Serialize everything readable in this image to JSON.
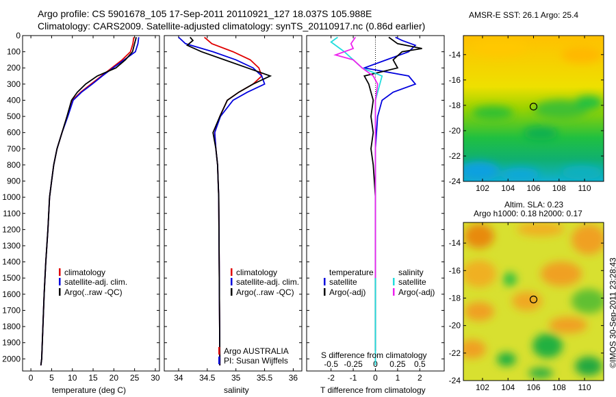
{
  "title_line1": "Argo profile: CS 5901678_105 17-Sep-2011 20110921_127 18.037S 105.988E",
  "title_line2": "Climatology: CARS2009. Satellite-adjusted climatology: synTS_20110917.nc (0.86d earlier)",
  "credit": "©IMOS 30-Sep-2011 23:28:43",
  "colors": {
    "climatology": "#e00000",
    "satellite": "#0000dd",
    "argo": "#000000",
    "sat_salinity": "#22dddd",
    "argo_salinity": "#ee22ee"
  },
  "chart_data": [
    {
      "type": "line",
      "id": "temperature",
      "xlabel": "temperature (deg C)",
      "ylabel": "",
      "xlim": [
        -2,
        31
      ],
      "ylim": [
        2075,
        0
      ],
      "xticks": [
        0,
        5,
        10,
        15,
        20,
        25,
        30
      ],
      "yticks": [
        0,
        100,
        200,
        300,
        400,
        500,
        600,
        700,
        800,
        900,
        1000,
        1100,
        1200,
        1300,
        1400,
        1500,
        1600,
        1700,
        1800,
        1900,
        2000
      ],
      "legend": [
        "climatology",
        "satellite-adj. clim.",
        "Argo(..raw -QC)"
      ],
      "series": [
        {
          "name": "climatology",
          "color": "#e00000",
          "points": [
            [
              24.8,
              10
            ],
            [
              24.6,
              50
            ],
            [
              24.0,
              100
            ],
            [
              22.0,
              150
            ],
            [
              19.5,
              200
            ],
            [
              17.0,
              250
            ],
            [
              14.5,
              300
            ],
            [
              12.0,
              350
            ],
            [
              10.0,
              400
            ],
            [
              8.8,
              500
            ],
            [
              7.5,
              600
            ],
            [
              6.3,
              700
            ],
            [
              5.5,
              800
            ],
            [
              5.0,
              900
            ],
            [
              4.5,
              1000
            ],
            [
              4.1,
              1200
            ],
            [
              3.6,
              1400
            ],
            [
              3.2,
              1600
            ],
            [
              2.9,
              1800
            ],
            [
              2.6,
              2000
            ],
            [
              2.4,
              2040
            ]
          ]
        },
        {
          "name": "satellite-adj. clim.",
          "color": "#0000dd",
          "points": [
            [
              26.0,
              10
            ],
            [
              25.8,
              50
            ],
            [
              25.2,
              100
            ],
            [
              22.5,
              150
            ],
            [
              19.8,
              200
            ],
            [
              17.2,
              250
            ],
            [
              14.8,
              300
            ],
            [
              12.2,
              350
            ],
            [
              10.2,
              400
            ],
            [
              8.9,
              500
            ],
            [
              7.5,
              600
            ],
            [
              6.3,
              700
            ],
            [
              5.5,
              800
            ],
            [
              5.0,
              900
            ],
            [
              4.5,
              1000
            ],
            [
              4.1,
              1200
            ],
            [
              3.6,
              1400
            ],
            [
              3.2,
              1600
            ],
            [
              2.9,
              1800
            ],
            [
              2.6,
              2000
            ],
            [
              2.4,
              2040
            ]
          ]
        },
        {
          "name": "Argo(..raw -QC)",
          "color": "#000000",
          "points": [
            [
              25.4,
              10
            ],
            [
              25.0,
              50
            ],
            [
              24.5,
              100
            ],
            [
              22.8,
              150
            ],
            [
              20.5,
              200
            ],
            [
              16.0,
              250
            ],
            [
              13.2,
              300
            ],
            [
              11.2,
              350
            ],
            [
              9.8,
              400
            ],
            [
              8.7,
              500
            ],
            [
              7.5,
              600
            ],
            [
              6.3,
              700
            ],
            [
              5.5,
              800
            ],
            [
              5.0,
              900
            ],
            [
              4.5,
              1000
            ],
            [
              4.1,
              1200
            ],
            [
              3.6,
              1400
            ],
            [
              3.2,
              1600
            ],
            [
              2.9,
              1800
            ],
            [
              2.6,
              2000
            ],
            [
              2.4,
              2040
            ]
          ]
        }
      ]
    },
    {
      "type": "line",
      "id": "salinity",
      "xlabel": "salinity",
      "ylabel": "",
      "xlim": [
        33.75,
        36.15
      ],
      "ylim": [
        2075,
        0
      ],
      "xticks": [
        34,
        34.5,
        35,
        35.5,
        36
      ],
      "legend": [
        "climatology",
        "satellite-adj. clim.",
        "Argo(..raw -QC)"
      ],
      "annotation": [
        "Argo AUSTRALIA",
        "PI: Susan Wijffels"
      ],
      "series": [
        {
          "name": "climatology",
          "color": "#e00000",
          "points": [
            [
              34.45,
              10
            ],
            [
              34.58,
              50
            ],
            [
              34.95,
              100
            ],
            [
              35.25,
              150
            ],
            [
              35.4,
              200
            ],
            [
              35.45,
              250
            ],
            [
              35.3,
              300
            ],
            [
              35.05,
              350
            ],
            [
              34.85,
              400
            ],
            [
              34.72,
              500
            ],
            [
              34.63,
              600
            ],
            [
              34.65,
              700
            ],
            [
              34.68,
              800
            ],
            [
              34.69,
              900
            ],
            [
              34.7,
              1000
            ],
            [
              34.71,
              1500
            ],
            [
              34.72,
              2000
            ],
            [
              34.72,
              2040
            ]
          ]
        },
        {
          "name": "satellite-adj. clim.",
          "color": "#0000dd",
          "points": [
            [
              34.0,
              10
            ],
            [
              34.12,
              50
            ],
            [
              34.6,
              100
            ],
            [
              35.0,
              150
            ],
            [
              35.3,
              200
            ],
            [
              35.45,
              250
            ],
            [
              35.5,
              300
            ],
            [
              35.2,
              350
            ],
            [
              34.95,
              400
            ],
            [
              34.73,
              500
            ],
            [
              34.63,
              600
            ],
            [
              34.65,
              700
            ],
            [
              34.68,
              800
            ],
            [
              34.69,
              900
            ],
            [
              34.7,
              1000
            ],
            [
              34.71,
              1500
            ],
            [
              34.72,
              2000
            ],
            [
              34.72,
              2040
            ]
          ]
        },
        {
          "name": "Argo(..raw -QC)",
          "color": "#000000",
          "points": [
            [
              34.2,
              10
            ],
            [
              34.25,
              30
            ],
            [
              34.15,
              60
            ],
            [
              34.4,
              100
            ],
            [
              34.8,
              150
            ],
            [
              35.2,
              200
            ],
            [
              35.6,
              250
            ],
            [
              35.3,
              300
            ],
            [
              35.05,
              350
            ],
            [
              34.85,
              400
            ],
            [
              34.72,
              500
            ],
            [
              34.6,
              600
            ],
            [
              34.65,
              700
            ],
            [
              34.68,
              800
            ],
            [
              34.69,
              900
            ],
            [
              34.7,
              1000
            ],
            [
              34.71,
              1500
            ],
            [
              34.72,
              2000
            ],
            [
              34.72,
              2040
            ]
          ]
        }
      ]
    },
    {
      "type": "line",
      "id": "difference",
      "xlabel": "T difference from climatology",
      "xlabel_top": "S difference from climatology",
      "xlim": [
        -3.1,
        3.1
      ],
      "ylim": [
        2075,
        0
      ],
      "xticks": [
        -2,
        -1,
        0,
        1,
        2
      ],
      "xticks_s": [
        -0.5,
        -0.25,
        0,
        0.25,
        0.5
      ],
      "legend_t_title": "temperature",
      "legend_s_title": "salinity",
      "legend_t": [
        "satellite",
        "Argo(-adj)"
      ],
      "legend_s": [
        "satellite",
        "Argo(-adj)"
      ],
      "series": [
        {
          "name": "T satellite",
          "color": "#0000dd",
          "points": [
            [
              0.9,
              10
            ],
            [
              1.2,
              30
            ],
            [
              1.8,
              60
            ],
            [
              1.5,
              100
            ],
            [
              0.5,
              150
            ],
            [
              -0.5,
              200
            ],
            [
              1.5,
              250
            ],
            [
              1.8,
              300
            ],
            [
              0.8,
              350
            ],
            [
              0.3,
              400
            ],
            [
              0.1,
              500
            ],
            [
              0.0,
              700
            ],
            [
              0.0,
              1000
            ],
            [
              0.0,
              1600
            ],
            [
              0.0,
              1950
            ]
          ]
        },
        {
          "name": "T Argo(-adj)",
          "color": "#000000",
          "points": [
            [
              0.6,
              10
            ],
            [
              1.0,
              50
            ],
            [
              2.1,
              80
            ],
            [
              1.2,
              100
            ],
            [
              0.8,
              150
            ],
            [
              1.0,
              200
            ],
            [
              -0.5,
              250
            ],
            [
              -0.3,
              300
            ],
            [
              -0.2,
              350
            ],
            [
              -0.1,
              400
            ],
            [
              -0.2,
              500
            ],
            [
              -0.1,
              600
            ],
            [
              -0.2,
              700
            ],
            [
              -0.1,
              800
            ],
            [
              0.0,
              1000
            ],
            [
              0.0,
              1600
            ],
            [
              0.0,
              1950
            ]
          ]
        },
        {
          "name": "S satellite",
          "color": "#22dddd",
          "points": [
            [
              -1.7,
              10
            ],
            [
              -2.0,
              40
            ],
            [
              -1.4,
              100
            ],
            [
              -1.0,
              150
            ],
            [
              -0.6,
              200
            ],
            [
              0.3,
              250
            ],
            [
              0.0,
              400
            ],
            [
              0.0,
              1000
            ],
            [
              0.0,
              2040
            ]
          ]
        },
        {
          "name": "S Argo(-adj)",
          "color": "#ee22ee",
          "points": [
            [
              -0.9,
              10
            ],
            [
              -1.1,
              50
            ],
            [
              -1.0,
              80
            ],
            [
              -1.8,
              120
            ],
            [
              -1.0,
              150
            ],
            [
              -0.6,
              200
            ],
            [
              -0.1,
              250
            ],
            [
              0.1,
              300
            ],
            [
              0.05,
              350
            ],
            [
              0.0,
              400
            ],
            [
              0.0,
              600
            ],
            [
              0.0,
              1000
            ],
            [
              0.0,
              1500
            ]
          ]
        }
      ]
    },
    {
      "type": "heatmap",
      "id": "sst_map",
      "title": "AMSR-E SST: 26.1 Argo: 25.4",
      "xlim": [
        100.5,
        111.5
      ],
      "ylim": [
        -24,
        -12.5
      ],
      "xticks": [
        102,
        104,
        106,
        108,
        110
      ],
      "yticks": [
        -14,
        -16,
        -18,
        -20,
        -22,
        -24
      ],
      "marker": [
        106.0,
        -18.1
      ]
    },
    {
      "type": "heatmap",
      "id": "sla_map",
      "title_line1": "Altim. SLA: 0.23",
      "title_line2": "Argo h1000: 0.18 h2000: 0.17",
      "xlim": [
        100.5,
        111.5
      ],
      "ylim": [
        -24,
        -12.5
      ],
      "xticks": [
        102,
        104,
        106,
        108,
        110
      ],
      "yticks": [
        -14,
        -16,
        -18,
        -20,
        -22,
        -24
      ],
      "marker": [
        106.0,
        -18.1
      ]
    }
  ]
}
